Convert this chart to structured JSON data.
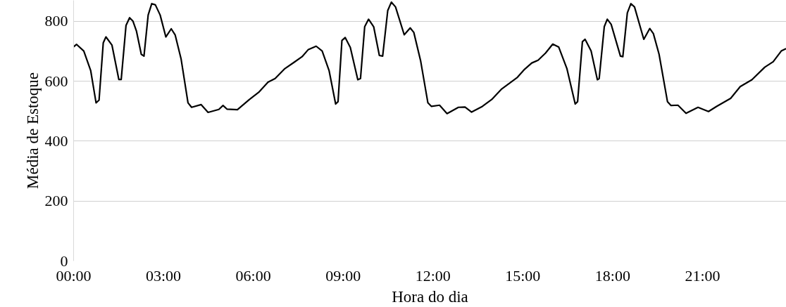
{
  "chart_data": {
    "type": "line",
    "xlabel": "Hora do dia",
    "ylabel": "Média de Estoque",
    "x": [
      0,
      0.1,
      0.34,
      0.57,
      0.75,
      0.85,
      0.99,
      1.08,
      1.28,
      1.51,
      1.59,
      1.75,
      1.87,
      1.98,
      2.1,
      2.26,
      2.35,
      2.49,
      2.61,
      2.73,
      2.89,
      3.08,
      3.26,
      3.39,
      3.59,
      3.82,
      3.94,
      4.26,
      4.49,
      4.85,
      4.99,
      5.12,
      5.47,
      5.87,
      6.18,
      6.49,
      6.73,
      7.04,
      7.36,
      7.63,
      7.83,
      8.1,
      8.3,
      8.53,
      8.75,
      8.83,
      8.96,
      9.07,
      9.24,
      9.49,
      9.58,
      9.72,
      9.85,
      10.02,
      10.21,
      10.32,
      10.49,
      10.61,
      10.75,
      11.04,
      11.24,
      11.36,
      11.59,
      11.83,
      11.95,
      12.22,
      12.47,
      12.85,
      13.07,
      13.29,
      13.65,
      13.96,
      14.28,
      14.59,
      14.82,
      15.06,
      15.3,
      15.51,
      15.76,
      16.0,
      16.2,
      16.47,
      16.75,
      16.83,
      16.99,
      17.08,
      17.28,
      17.49,
      17.55,
      17.72,
      17.82,
      17.95,
      18.26,
      18.34,
      18.49,
      18.61,
      18.73,
      19.04,
      19.24,
      19.36,
      19.55,
      19.83,
      19.95,
      20.18,
      20.45,
      20.85,
      21.2,
      21.47,
      21.94,
      22.26,
      22.65,
      23.08,
      23.36,
      23.63,
      23.79
    ],
    "series": [
      {
        "color": "#000000",
        "values": [
          715,
          723,
          701,
          636,
          528,
          537,
          728,
          748,
          721,
          606,
          606,
          786,
          812,
          801,
          767,
          690,
          684,
          821,
          859,
          855,
          821,
          748,
          775,
          755,
          674,
          528,
          513,
          522,
          496,
          506,
          519,
          507,
          505,
          539,
          563,
          597,
          609,
          641,
          663,
          682,
          705,
          717,
          701,
          636,
          524,
          532,
          736,
          746,
          713,
          605,
          609,
          782,
          807,
          782,
          686,
          684,
          836,
          864,
          848,
          755,
          778,
          763,
          667,
          528,
          516,
          520,
          492,
          513,
          514,
          497,
          516,
          539,
          573,
          596,
          613,
          640,
          661,
          670,
          694,
          724,
          714,
          643,
          524,
          532,
          732,
          740,
          701,
          605,
          609,
          782,
          807,
          790,
          684,
          682,
          828,
          859,
          848,
          740,
          776,
          759,
          690,
          532,
          519,
          520,
          493,
          513,
          499,
          516,
          543,
          582,
          605,
          647,
          665,
          701,
          709
        ]
      }
    ],
    "xlim": [
      0,
      23.8
    ],
    "ylim": [
      0,
      870
    ],
    "xticks": [
      {
        "value": 0,
        "label": "00:00"
      },
      {
        "value": 3,
        "label": "03:00"
      },
      {
        "value": 6,
        "label": "06:00"
      },
      {
        "value": 9,
        "label": "09:00"
      },
      {
        "value": 12,
        "label": "12:00"
      },
      {
        "value": 15,
        "label": "15:00"
      },
      {
        "value": 18,
        "label": "18:00"
      },
      {
        "value": 21,
        "label": "21:00"
      }
    ],
    "yticks": [
      0,
      200,
      400,
      600,
      800
    ],
    "grid": "y",
    "marker": "none",
    "line_style": "solid"
  }
}
